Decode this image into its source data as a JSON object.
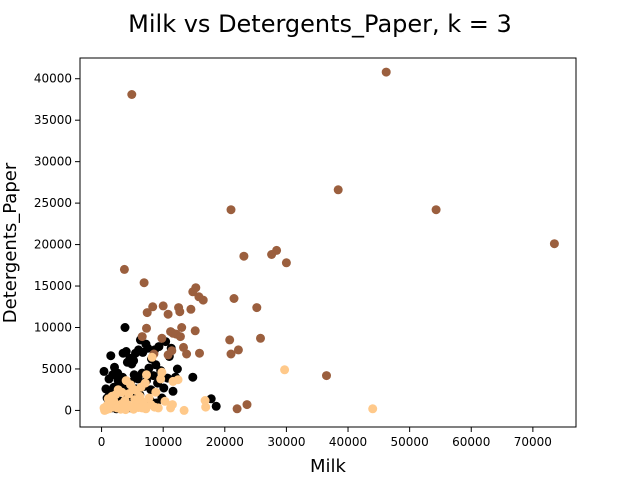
{
  "chart_data": {
    "type": "scatter",
    "title": "Milk vs Detergents_Paper, k = 3",
    "xlabel": "Milk",
    "ylabel": "Detergents_Paper",
    "xlim": [
      -3500,
      77000
    ],
    "ylim": [
      -2000,
      42500
    ],
    "xticks": [
      0,
      10000,
      20000,
      30000,
      40000,
      50000,
      60000,
      70000
    ],
    "yticks": [
      0,
      5000,
      10000,
      15000,
      20000,
      25000,
      30000,
      35000,
      40000
    ],
    "grid": false,
    "colors": {
      "cluster_black": "#000000",
      "cluster_brown": "#9b5f3e",
      "cluster_peach": "#ffc98a"
    },
    "series": [
      {
        "color_key": "cluster_black",
        "points": [
          [
            400,
            4700
          ],
          [
            1200,
            3800
          ],
          [
            1500,
            6600
          ],
          [
            2100,
            5200
          ],
          [
            2600,
            4500
          ],
          [
            3000,
            3200
          ],
          [
            3300,
            2500
          ],
          [
            3500,
            6900
          ],
          [
            3800,
            10000
          ],
          [
            4000,
            7100
          ],
          [
            4200,
            5800
          ],
          [
            4600,
            6300
          ],
          [
            4900,
            5600
          ],
          [
            5200,
            6000
          ],
          [
            5500,
            6900
          ],
          [
            6000,
            7300
          ],
          [
            6300,
            8500
          ],
          [
            6700,
            7000
          ],
          [
            7200,
            8000
          ],
          [
            7500,
            7500
          ],
          [
            8100,
            6200
          ],
          [
            8600,
            7300
          ],
          [
            9300,
            7700
          ],
          [
            10400,
            8300
          ],
          [
            11000,
            6500
          ],
          [
            11300,
            7500
          ],
          [
            12000,
            4000
          ],
          [
            12300,
            5000
          ],
          [
            14800,
            4000
          ],
          [
            17800,
            1400
          ],
          [
            18600,
            500
          ],
          [
            900,
            1500
          ],
          [
            1300,
            2100
          ],
          [
            1700,
            900
          ],
          [
            2000,
            2800
          ],
          [
            2300,
            1800
          ],
          [
            2700,
            3600
          ],
          [
            3100,
            1100
          ],
          [
            3400,
            4000
          ],
          [
            3700,
            2200
          ],
          [
            4100,
            3000
          ],
          [
            4400,
            1600
          ],
          [
            4700,
            3400
          ],
          [
            5000,
            2100
          ],
          [
            5300,
            4300
          ],
          [
            5600,
            2600
          ],
          [
            5900,
            3800
          ],
          [
            6200,
            1900
          ],
          [
            6600,
            4500
          ],
          [
            6900,
            2900
          ],
          [
            7300,
            3600
          ],
          [
            7700,
            5100
          ],
          [
            8000,
            2500
          ],
          [
            8400,
            4200
          ],
          [
            8800,
            5500
          ],
          [
            9100,
            3300
          ],
          [
            9600,
            4800
          ],
          [
            10100,
            2700
          ],
          [
            10700,
            3900
          ],
          [
            1000,
            500
          ],
          [
            1600,
            300
          ],
          [
            2400,
            200
          ],
          [
            3600,
            400
          ],
          [
            4800,
            300
          ],
          [
            6400,
            600
          ],
          [
            7900,
            1200
          ],
          [
            8900,
            900
          ],
          [
            9800,
            1500
          ],
          [
            11600,
            2300
          ],
          [
            700,
            2600
          ],
          [
            1800,
            4300
          ]
        ]
      },
      {
        "color_key": "cluster_brown",
        "points": [
          [
            46200,
            40800
          ],
          [
            4900,
            38100
          ],
          [
            38400,
            26600
          ],
          [
            21000,
            24200
          ],
          [
            54300,
            24200
          ],
          [
            73500,
            20100
          ],
          [
            28400,
            19300
          ],
          [
            23100,
            18600
          ],
          [
            27600,
            18800
          ],
          [
            30000,
            17800
          ],
          [
            3700,
            17000
          ],
          [
            6900,
            15400
          ],
          [
            14800,
            14300
          ],
          [
            15300,
            14800
          ],
          [
            15800,
            13700
          ],
          [
            16500,
            13300
          ],
          [
            21500,
            13500
          ],
          [
            7400,
            11800
          ],
          [
            8300,
            12500
          ],
          [
            10000,
            12600
          ],
          [
            10800,
            11600
          ],
          [
            12500,
            12400
          ],
          [
            12700,
            11900
          ],
          [
            14500,
            12200
          ],
          [
            25200,
            12400
          ],
          [
            11200,
            9500
          ],
          [
            11600,
            9300
          ],
          [
            12100,
            9200
          ],
          [
            13000,
            10000
          ],
          [
            15200,
            9600
          ],
          [
            7300,
            9900
          ],
          [
            8500,
            6800
          ],
          [
            10800,
            6700
          ],
          [
            12800,
            8900
          ],
          [
            13300,
            7600
          ],
          [
            13800,
            6800
          ],
          [
            15900,
            6900
          ],
          [
            20800,
            8500
          ],
          [
            22200,
            7300
          ],
          [
            25800,
            8700
          ],
          [
            21000,
            6800
          ],
          [
            36500,
            4200
          ],
          [
            22000,
            200
          ],
          [
            23600,
            700
          ],
          [
            6600,
            8900
          ],
          [
            9800,
            8700
          ],
          [
            11400,
            7200
          ]
        ]
      },
      {
        "color_key": "cluster_peach",
        "points": [
          [
            29700,
            4900
          ],
          [
            44000,
            200
          ],
          [
            16800,
            1200
          ],
          [
            16900,
            400
          ],
          [
            13400,
            0
          ],
          [
            11200,
            300
          ],
          [
            11500,
            700
          ],
          [
            11600,
            3500
          ],
          [
            12400,
            3700
          ],
          [
            9800,
            4600
          ],
          [
            9600,
            3800
          ],
          [
            7300,
            4300
          ],
          [
            7100,
            3300
          ],
          [
            8200,
            6400
          ],
          [
            6700,
            1000
          ],
          [
            6600,
            300
          ],
          [
            7200,
            200
          ],
          [
            8000,
            700
          ],
          [
            8600,
            400
          ],
          [
            4700,
            3100
          ],
          [
            5100,
            2600
          ],
          [
            4400,
            2000
          ],
          [
            3800,
            1200
          ],
          [
            3300,
            800
          ],
          [
            2800,
            600
          ],
          [
            2300,
            1900
          ],
          [
            2000,
            1100
          ],
          [
            1600,
            600
          ],
          [
            1200,
            200
          ],
          [
            800,
            100
          ],
          [
            500,
            0
          ],
          [
            400,
            300
          ],
          [
            900,
            600
          ],
          [
            1400,
            900
          ],
          [
            1900,
            400
          ],
          [
            2500,
            300
          ],
          [
            3100,
            150
          ],
          [
            3600,
            500
          ],
          [
            4200,
            700
          ],
          [
            4900,
            450
          ],
          [
            5400,
            1300
          ],
          [
            5800,
            900
          ],
          [
            6200,
            1700
          ],
          [
            2700,
            2500
          ],
          [
            3300,
            2200
          ],
          [
            4000,
            3600
          ],
          [
            5600,
            2400
          ],
          [
            6400,
            2800
          ],
          [
            8800,
            2200
          ],
          [
            10300,
            1100
          ],
          [
            1100,
            1400
          ],
          [
            1700,
            1700
          ],
          [
            3900,
            100
          ],
          [
            5200,
            150
          ],
          [
            6000,
            350
          ],
          [
            7700,
            1500
          ],
          [
            9200,
            300
          ]
        ]
      }
    ]
  }
}
